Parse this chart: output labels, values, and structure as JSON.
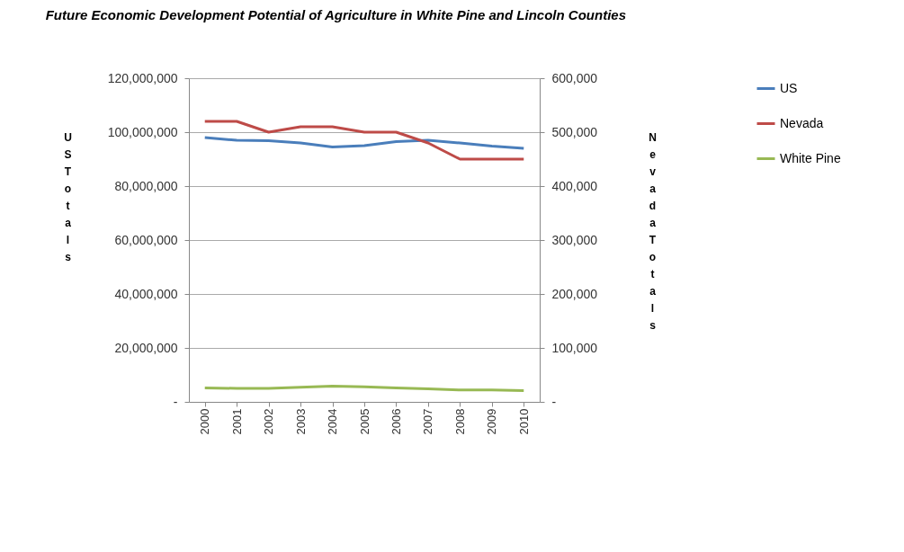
{
  "chart_data": {
    "type": "line",
    "title": "Future Economic Development Potential of Agriculture in White Pine and Lincoln Counties",
    "ylabel": "US Totals",
    "y2label": "Nevada Totals",
    "categories": [
      "2000",
      "2001",
      "2002",
      "2003",
      "2004",
      "2005",
      "2006",
      "2007",
      "2008",
      "2009",
      "2010"
    ],
    "series": [
      {
        "name": "US",
        "color": "#4a7ebb",
        "values": [
          98000000,
          97000000,
          96800000,
          96000000,
          94500000,
          95000000,
          96500000,
          97000000,
          96000000,
          94800000,
          94000000
        ]
      },
      {
        "name": "Nevada",
        "color": "#be4b48",
        "axis": "y2",
        "values": [
          520000,
          520000,
          500000,
          510000,
          510000,
          500000,
          500000,
          480000,
          450000,
          450000,
          450000
        ]
      },
      {
        "name": "White Pine",
        "color": "#98b954",
        "axis": "y2",
        "values": [
          26000,
          25000,
          25000,
          27000,
          29000,
          28000,
          26000,
          24000,
          22000,
          22000,
          21000
        ]
      }
    ],
    "ylim": [
      0,
      120000000
    ],
    "yticks": [
      {
        "value": 0,
        "label": "-"
      },
      {
        "value": 20000000,
        "label": "20,000,000"
      },
      {
        "value": 40000000,
        "label": "40,000,000"
      },
      {
        "value": 60000000,
        "label": "60,000,000"
      },
      {
        "value": 80000000,
        "label": "80,000,000"
      },
      {
        "value": 100000000,
        "label": "100,000,000"
      },
      {
        "value": 120000000,
        "label": "120,000,000"
      }
    ],
    "y2lim": [
      0,
      600000
    ],
    "y2ticks": [
      {
        "value": 0,
        "label": "-"
      },
      {
        "value": 100000,
        "label": "100,000"
      },
      {
        "value": 200000,
        "label": "200,000"
      },
      {
        "value": 300000,
        "label": "300,000"
      },
      {
        "value": 400000,
        "label": "400,000"
      },
      {
        "value": 500000,
        "label": "500,000"
      },
      {
        "value": 600000,
        "label": "600,000"
      }
    ],
    "grid": "y",
    "legend": "right",
    "marker": "none",
    "line_style": "solid"
  }
}
